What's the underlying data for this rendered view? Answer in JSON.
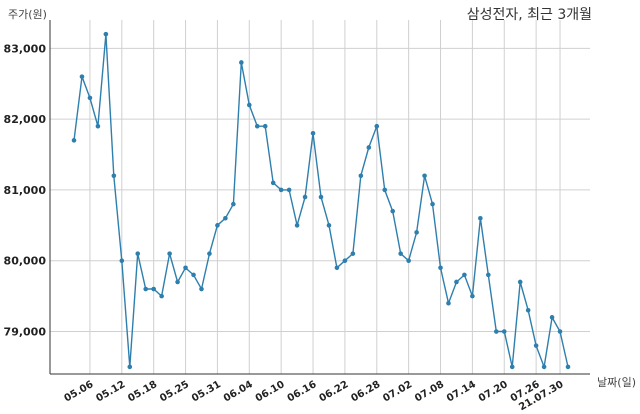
{
  "chart_data": {
    "type": "line",
    "title": "삼성전자, 최근 3개월",
    "xlabel": "날짜(일)",
    "ylabel": "주가(원)",
    "ylim": [
      78400,
      83400
    ],
    "yticks": [
      79000,
      80000,
      81000,
      82000,
      83000
    ],
    "ytick_labels": [
      "79,000",
      "80,000",
      "81,000",
      "82,000",
      "83,000"
    ],
    "grid": true,
    "xtick_labels": [
      "05.06",
      "05.12",
      "05.18",
      "05.25",
      "05.31",
      "06.04",
      "06.10",
      "06.16",
      "06.22",
      "06.28",
      "07.02",
      "07.08",
      "07.14",
      "07.20",
      "07.26",
      "21.07.30"
    ],
    "xtick_indices": [
      2,
      6,
      10,
      14,
      18,
      22,
      26,
      30,
      34,
      38,
      42,
      46,
      50,
      54,
      58,
      61
    ],
    "color": "#2e7fad",
    "values": [
      81700,
      82600,
      82300,
      81900,
      83200,
      81200,
      80000,
      78500,
      80100,
      79600,
      79600,
      79500,
      80100,
      79700,
      79900,
      79800,
      79600,
      80100,
      80500,
      80600,
      80800,
      82800,
      82200,
      81900,
      81900,
      81100,
      81000,
      81000,
      80500,
      80900,
      81800,
      80900,
      80500,
      79900,
      80000,
      80100,
      81200,
      81600,
      81900,
      81000,
      80700,
      80100,
      80000,
      80400,
      81200,
      80800,
      79900,
      79400,
      79700,
      79800,
      79500,
      80600,
      79800,
      79000,
      79000,
      78500,
      79700,
      79300,
      78800,
      78500,
      79200,
      79000,
      78500
    ]
  }
}
